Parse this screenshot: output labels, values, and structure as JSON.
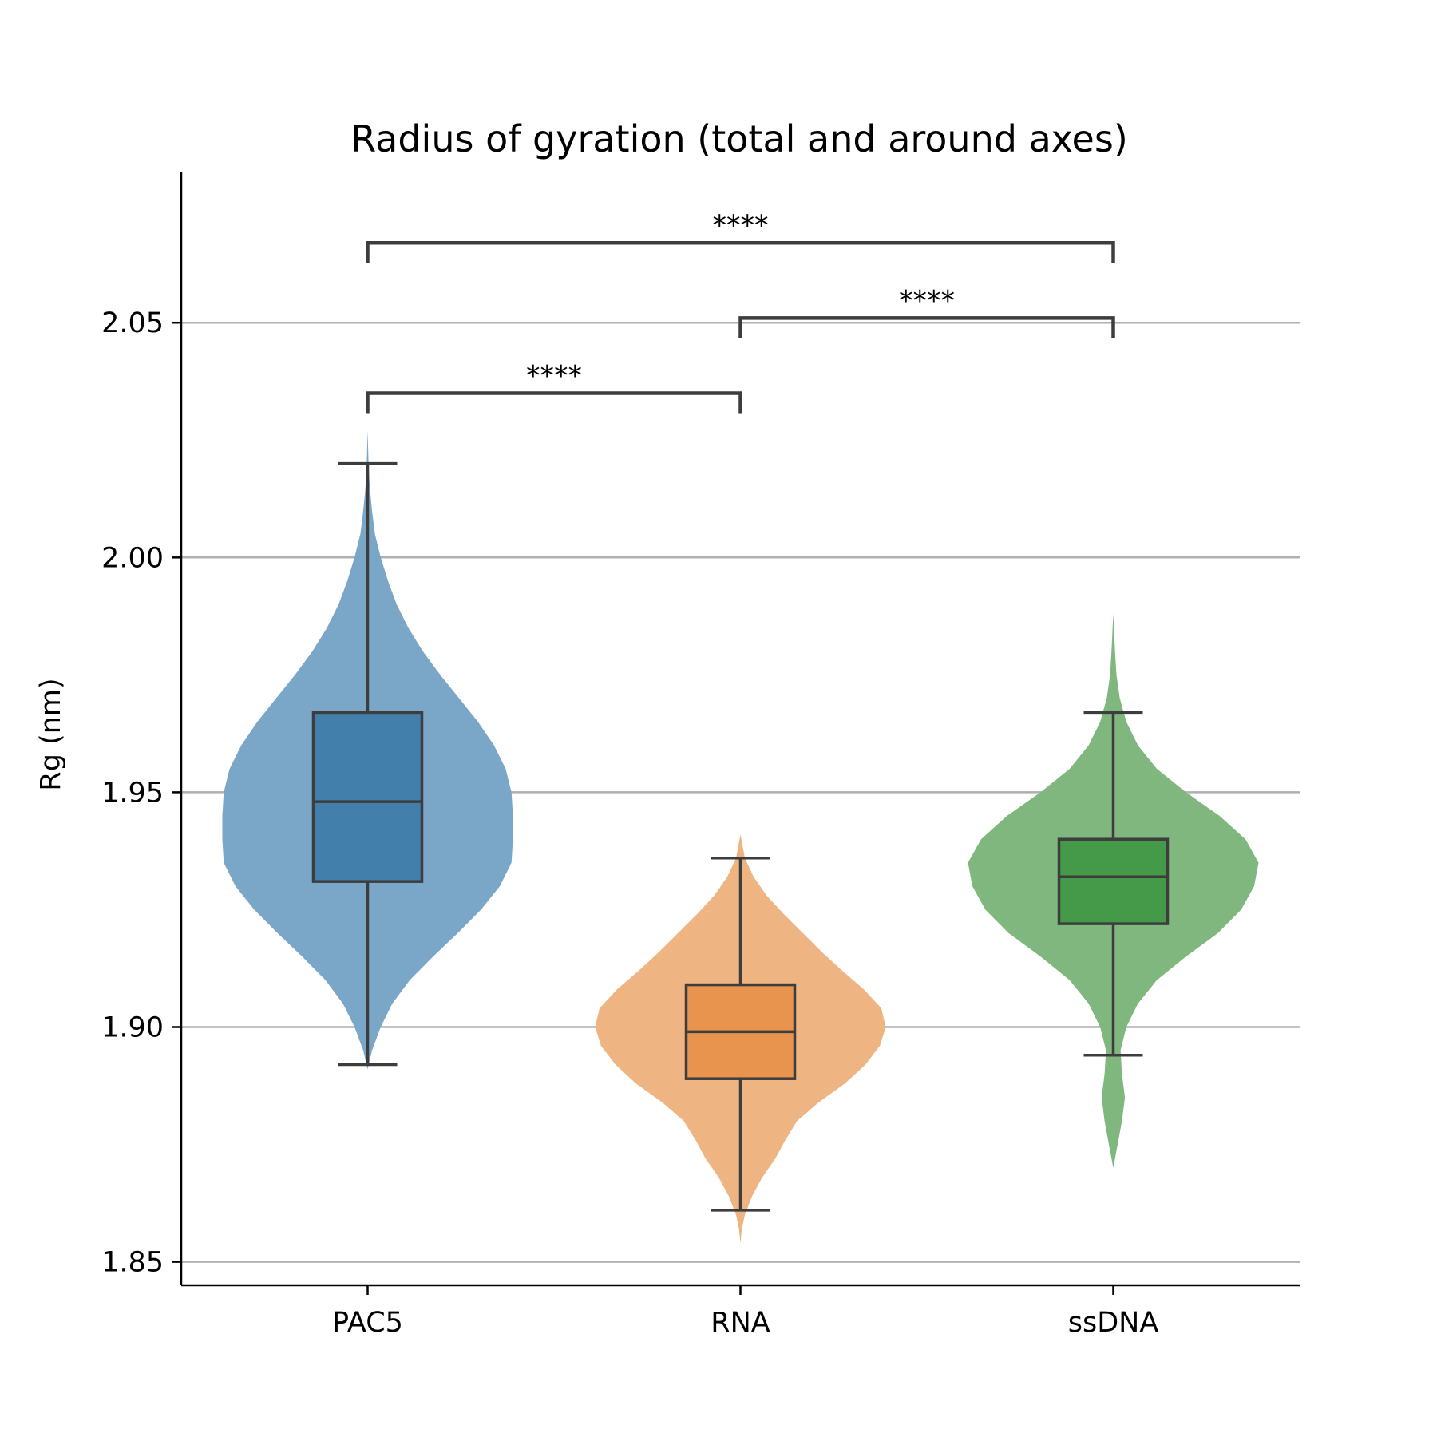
{
  "chart_data": {
    "type": "violin",
    "title": "Radius of gyration (total and around axes)",
    "xlabel": "",
    "ylabel": "Rg (nm)",
    "ylim": [
      1.845,
      2.082
    ],
    "yticks": [
      1.85,
      1.9,
      1.95,
      2.0,
      2.05
    ],
    "ytick_labels": [
      "1.85",
      "1.90",
      "1.95",
      "2.00",
      "2.05"
    ],
    "grid": {
      "y": true,
      "color": "#b0b0b0"
    },
    "categories": [
      "PAC5",
      "RNA",
      "ssDNA"
    ],
    "series": [
      {
        "category": "PAC5",
        "violin_color": "#7aa6c7",
        "box_color": "#437fab",
        "violin_min": 1.891,
        "violin_max": 2.027,
        "whisker_low": 1.892,
        "q1": 1.931,
        "median": 1.948,
        "q3": 1.967,
        "whisker_high": 2.02,
        "density_profile": [
          [
            1.891,
            0.0
          ],
          [
            1.895,
            0.03
          ],
          [
            1.9,
            0.09
          ],
          [
            1.905,
            0.17
          ],
          [
            1.91,
            0.29
          ],
          [
            1.915,
            0.45
          ],
          [
            1.92,
            0.62
          ],
          [
            1.925,
            0.78
          ],
          [
            1.93,
            0.91
          ],
          [
            1.935,
            0.99
          ],
          [
            1.94,
            1.0
          ],
          [
            1.945,
            1.0
          ],
          [
            1.95,
            0.99
          ],
          [
            1.955,
            0.95
          ],
          [
            1.96,
            0.87
          ],
          [
            1.965,
            0.76
          ],
          [
            1.97,
            0.63
          ],
          [
            1.975,
            0.5
          ],
          [
            1.98,
            0.38
          ],
          [
            1.985,
            0.28
          ],
          [
            1.99,
            0.2
          ],
          [
            1.995,
            0.14
          ],
          [
            2.0,
            0.09
          ],
          [
            2.005,
            0.05
          ],
          [
            2.01,
            0.03
          ],
          [
            2.015,
            0.015
          ],
          [
            2.02,
            0.006
          ],
          [
            2.027,
            0.0
          ]
        ]
      },
      {
        "category": "RNA",
        "violin_color": "#eeb482",
        "box_color": "#e8944e",
        "violin_min": 1.854,
        "violin_max": 1.941,
        "whisker_low": 1.861,
        "q1": 1.889,
        "median": 1.899,
        "q3": 1.909,
        "whisker_high": 1.936,
        "density_profile": [
          [
            1.854,
            0.0
          ],
          [
            1.857,
            0.01
          ],
          [
            1.86,
            0.03
          ],
          [
            1.864,
            0.08
          ],
          [
            1.868,
            0.15
          ],
          [
            1.872,
            0.24
          ],
          [
            1.876,
            0.31
          ],
          [
            1.88,
            0.39
          ],
          [
            1.884,
            0.54
          ],
          [
            1.888,
            0.72
          ],
          [
            1.892,
            0.86
          ],
          [
            1.896,
            0.96
          ],
          [
            1.9,
            1.0
          ],
          [
            1.904,
            0.97
          ],
          [
            1.908,
            0.85
          ],
          [
            1.912,
            0.7
          ],
          [
            1.916,
            0.56
          ],
          [
            1.92,
            0.43
          ],
          [
            1.924,
            0.3
          ],
          [
            1.928,
            0.18
          ],
          [
            1.932,
            0.09
          ],
          [
            1.936,
            0.03
          ],
          [
            1.941,
            0.0
          ]
        ]
      },
      {
        "category": "ssDNA",
        "violin_color": "#7fb77e",
        "box_color": "#459a49",
        "violin_min": 1.87,
        "violin_max": 1.988,
        "whisker_low": 1.894,
        "q1": 1.922,
        "median": 1.932,
        "q3": 1.94,
        "whisker_high": 1.967,
        "density_profile": [
          [
            1.87,
            0.0
          ],
          [
            1.875,
            0.03
          ],
          [
            1.88,
            0.06
          ],
          [
            1.885,
            0.08
          ],
          [
            1.89,
            0.06
          ],
          [
            1.895,
            0.05
          ],
          [
            1.9,
            0.09
          ],
          [
            1.905,
            0.17
          ],
          [
            1.91,
            0.3
          ],
          [
            1.915,
            0.5
          ],
          [
            1.92,
            0.72
          ],
          [
            1.925,
            0.88
          ],
          [
            1.93,
            0.97
          ],
          [
            1.935,
            1.0
          ],
          [
            1.94,
            0.91
          ],
          [
            1.945,
            0.73
          ],
          [
            1.95,
            0.5
          ],
          [
            1.955,
            0.3
          ],
          [
            1.96,
            0.17
          ],
          [
            1.965,
            0.09
          ],
          [
            1.97,
            0.045
          ],
          [
            1.975,
            0.022
          ],
          [
            1.98,
            0.012
          ],
          [
            1.988,
            0.0
          ]
        ]
      }
    ],
    "significance": [
      {
        "from": "PAC5",
        "to": "RNA",
        "y": 2.035,
        "label": "****"
      },
      {
        "from": "RNA",
        "to": "ssDNA",
        "y": 2.051,
        "label": "****"
      },
      {
        "from": "PAC5",
        "to": "ssDNA",
        "y": 2.067,
        "label": "****"
      }
    ]
  }
}
